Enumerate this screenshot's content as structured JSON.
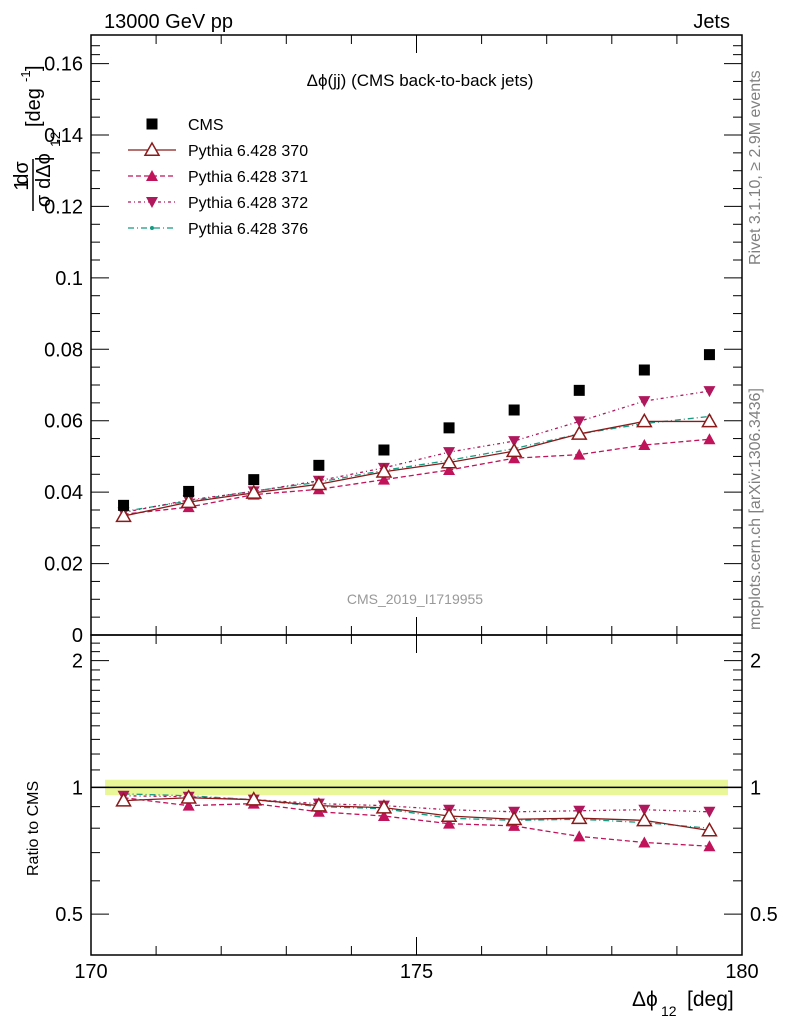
{
  "header": {
    "energy_label": "13000 GeV pp",
    "process_label": "Jets",
    "plot_title": "Δϕ(jj) (CMS back-to-back jets)",
    "analysis_id": "CMS_2019_I1719955",
    "rivet_label": "Rivet 3.1.10, ≥ 2.9M events",
    "mcplots_label": "mcplots.cern.ch [arXiv:1306.3436]"
  },
  "axes": {
    "ylabel_main_frac_top": "1",
    "ylabel_main_frac_num": "dσ",
    "ylabel_main_frac_bottom": "σ",
    "ylabel_main_frac_den": "dΔϕ",
    "ylabel_main_sub": "12",
    "ylabel_main_unit": "[deg",
    "ylabel_main_unit_sup": "-1",
    "ylabel_main_close": "]",
    "ylabel_ratio": "Ratio to CMS",
    "xlabel_main": "Δϕ",
    "xlabel_sub": "12",
    "xlabel_unit": "[deg]"
  },
  "colors": {
    "cms": "#000000",
    "p370": "#8b1a1a",
    "p371": "#c0135a",
    "p372": "#b0185e",
    "p376": "#149b82",
    "band": "#d8f044"
  },
  "chart_data": [
    {
      "type": "scatter",
      "panel": "main",
      "title": "Δϕ(jj) (CMS back-to-back jets)",
      "xlim": [
        170,
        180
      ],
      "ylim": [
        0,
        0.168
      ],
      "yticks": [
        0,
        0.02,
        0.04,
        0.06,
        0.08,
        0.1,
        0.12,
        0.14,
        0.16
      ],
      "ytick_labels": [
        "0",
        "0.02",
        "0.04",
        "0.06",
        "0.08",
        "0.1",
        "0.12",
        "0.14",
        "0.16"
      ],
      "x": [
        170.5,
        171.5,
        172.5,
        173.5,
        174.5,
        175.5,
        176.5,
        177.5,
        178.5,
        179.5
      ],
      "series": [
        {
          "name": "CMS",
          "key": "cms",
          "marker": "square",
          "values": [
            0.0363,
            0.0402,
            0.0435,
            0.0475,
            0.0518,
            0.058,
            0.063,
            0.0685,
            0.0742,
            0.0785
          ]
        },
        {
          "name": "Pythia 6.428 370",
          "key": "p370",
          "marker": "triangle-open",
          "values": [
            0.0333,
            0.0372,
            0.0398,
            0.0422,
            0.0457,
            0.0483,
            0.0515,
            0.0563,
            0.0598,
            0.0598
          ]
        },
        {
          "name": "Pythia 6.428 371",
          "key": "p371",
          "marker": "triangle-up",
          "values": [
            0.0338,
            0.0358,
            0.0393,
            0.0408,
            0.0435,
            0.0462,
            0.0495,
            0.0505,
            0.0532,
            0.0548
          ]
        },
        {
          "name": "Pythia 6.428 372",
          "key": "p372",
          "marker": "triangle-down",
          "values": [
            0.0343,
            0.0378,
            0.0402,
            0.0432,
            0.0468,
            0.0512,
            0.0543,
            0.0598,
            0.0655,
            0.0683
          ]
        },
        {
          "name": "Pythia 6.428 376",
          "key": "p376",
          "marker": "dot",
          "values": [
            0.0346,
            0.0375,
            0.0403,
            0.0428,
            0.0461,
            0.0489,
            0.0522,
            0.0563,
            0.0592,
            0.0612
          ]
        }
      ]
    },
    {
      "type": "scatter",
      "panel": "ratio",
      "ylabel": "Ratio to CMS",
      "xlim": [
        170,
        180
      ],
      "ylim": [
        0.4,
        2.3
      ],
      "log_y": true,
      "yticks": [
        0.5,
        1,
        2
      ],
      "ytick_labels": [
        "0.5",
        "1",
        "2"
      ],
      "xticks": [
        170,
        175,
        180
      ],
      "xtick_labels": [
        "170",
        "175",
        "180"
      ],
      "x": [
        170.5,
        171.5,
        172.5,
        173.5,
        174.5,
        175.5,
        176.5,
        177.5,
        178.5,
        179.5
      ],
      "band": {
        "low": 0.98,
        "high": 1.02
      },
      "series": [
        {
          "name": "Pythia 6.428 370",
          "key": "p370",
          "marker": "triangle-open",
          "values": [
            0.93,
            0.945,
            0.935,
            0.905,
            0.895,
            0.855,
            0.84,
            0.845,
            0.835,
            0.79
          ]
        },
        {
          "name": "Pythia 6.428 371",
          "key": "p371",
          "marker": "triangle-up",
          "values": [
            0.945,
            0.905,
            0.915,
            0.875,
            0.855,
            0.82,
            0.81,
            0.765,
            0.74,
            0.725
          ]
        },
        {
          "name": "Pythia 6.428 372",
          "key": "p372",
          "marker": "triangle-down",
          "values": [
            0.955,
            0.95,
            0.935,
            0.915,
            0.905,
            0.885,
            0.875,
            0.88,
            0.885,
            0.875
          ]
        },
        {
          "name": "Pythia 6.428 376",
          "key": "p376",
          "marker": "dot",
          "values": [
            0.965,
            0.955,
            0.935,
            0.9,
            0.89,
            0.845,
            0.835,
            0.84,
            0.825,
            0.8
          ]
        }
      ]
    }
  ]
}
